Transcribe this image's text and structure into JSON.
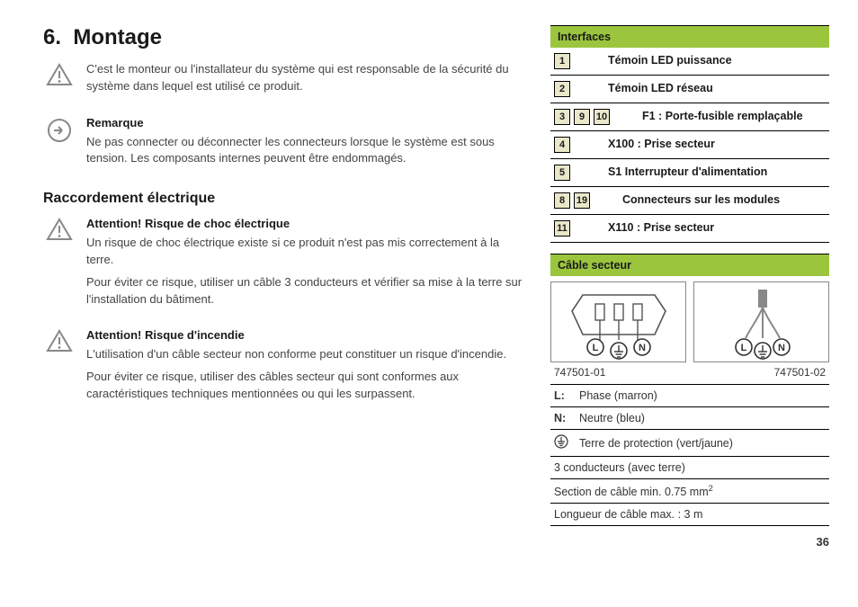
{
  "colors": {
    "accent": "#9bc53d",
    "num_bg": "#e9e7c9",
    "text": "#333333",
    "heading": "#1a1a1a",
    "rule": "#000000"
  },
  "heading": "6.  Montage",
  "notes": [
    {
      "icon": "warning",
      "title": "",
      "paragraphs": [
        "C'est le monteur ou l'installateur du système qui est responsable de la sécurité du système dans lequel est utilisé ce produit."
      ]
    },
    {
      "icon": "info",
      "title": "Remarque",
      "paragraphs": [
        "Ne pas connecter ou déconnecter les connecteurs lorsque le système est sous tension. Les composants internes peuvent être endommagés."
      ]
    }
  ],
  "subheading": "Raccordement électrique",
  "warnings": [
    {
      "icon": "warning",
      "title": "Attention! Risque de choc électrique",
      "paragraphs": [
        "Un risque de choc électrique existe si ce produit n'est pas mis correctement à la terre.",
        "Pour éviter ce risque, utiliser un câble 3 conducteurs et vérifier sa mise à la terre sur l'installation du bâtiment."
      ]
    },
    {
      "icon": "warning",
      "title": "Attention! Risque d'incendie",
      "paragraphs": [
        "L'utilisation d'un câble secteur non conforme peut constituer un risque d'incendie.",
        "Pour éviter ce risque, utiliser des câbles secteur qui sont conformes aux caractéristiques techniques mentionnées ou qui les surpassent."
      ]
    }
  ],
  "interfaces": {
    "header": "Interfaces",
    "rows": [
      {
        "nums": [
          "1"
        ],
        "label": "Témoin LED puissance"
      },
      {
        "nums": [
          "2"
        ],
        "label": "Témoin LED réseau"
      },
      {
        "nums": [
          "3",
          "9",
          "10"
        ],
        "label": "F1 : Porte-fusible remplaçable"
      },
      {
        "nums": [
          "4"
        ],
        "label": "X100 : Prise secteur"
      },
      {
        "nums": [
          "5"
        ],
        "label": "S1 Interrupteur d'alimentation"
      },
      {
        "nums": [
          "8",
          "19"
        ],
        "label": "Connecteurs sur les modules"
      },
      {
        "nums": [
          "11"
        ],
        "label": "X110 : Prise secteur"
      }
    ]
  },
  "cable": {
    "header": "Câble secteur",
    "parts": [
      "747501-01",
      "747501-02"
    ],
    "legend": [
      {
        "k": "L:",
        "v": "Phase (marron)"
      },
      {
        "k": "N:",
        "v": "Neutre (bleu)"
      },
      {
        "k": "⏚",
        "v": "Terre de protection (vert/jaune)"
      }
    ],
    "specs": [
      "3 conducteurs (avec terre)",
      "Section de câble min. 0.75 mm",
      "Longueur de câble max. : 3 m"
    ],
    "specs_sup": [
      "",
      "2",
      ""
    ]
  },
  "page_number": "36"
}
